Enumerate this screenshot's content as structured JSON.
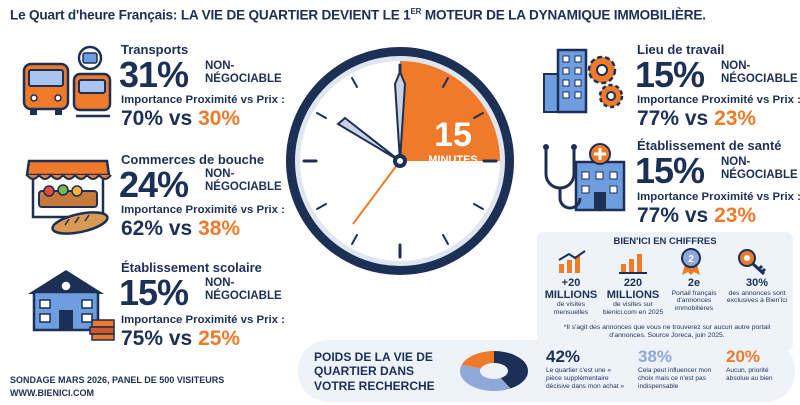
{
  "title": {
    "main": "Le Quart d'heure Français: LA VIE DE QUARTIER DEVIENT LE 1",
    "sup": "ER",
    "tail": " MOTEUR DE LA DYNAMIQUE IMMOBILIÈRE."
  },
  "clock": {
    "number": "15",
    "unit": "MINUTES"
  },
  "cards": {
    "transports": {
      "label": "Transports",
      "pct": "31%",
      "neg1": "NON-",
      "neg2": "NÉGOCIABLE",
      "imp": "Importance Proximité vs Prix :",
      "a": "70%",
      "vs": " vs ",
      "b": "30%"
    },
    "commerces": {
      "label": "Commerces de bouche",
      "pct": "24%",
      "neg1": "NON-",
      "neg2": "NÉGOCIABLE",
      "imp": "Importance Proximité vs Prix :",
      "a": "62%",
      "vs": " vs ",
      "b": "38%"
    },
    "scolaire": {
      "label": "Établissement scolaire",
      "pct": "15%",
      "neg1": "NON-",
      "neg2": "NÉGOCIABLE",
      "imp": "Importance Proximité vs Prix :",
      "a": "75%",
      "vs": " vs ",
      "b": "25%"
    },
    "travail": {
      "label": "Lieu de travail",
      "pct": "15%",
      "neg1": "NON-",
      "neg2": "NÉGOCIABLE",
      "imp": "Importance Proximité vs Prix :",
      "a": "77%",
      "vs": " vs ",
      "b": "23%"
    },
    "sante": {
      "label": "Établissement de santé",
      "pct": "15%",
      "neg1": "NON-",
      "neg2": "NÉGOCIABLE",
      "imp": "Importance Proximité vs Prix :",
      "a": "77%",
      "vs": " vs ",
      "b": "23%"
    }
  },
  "bienici": {
    "title": "BIEN'ICI EN CHIFFRES",
    "stats": [
      {
        "n1": "+20",
        "n2": "MILLIONS",
        "d": "de visites mensuelles"
      },
      {
        "n1": "220",
        "n2": "MILLIONS",
        "d": "de visites sur bienici.com en 2025"
      },
      {
        "n1": "2e",
        "n2": "",
        "d": "Portail français d'annonces immobilières"
      },
      {
        "n1": "30%",
        "n2": "",
        "d": "des annonces sont exclusives à Bien'ici"
      }
    ],
    "note": "*Il s'agit des annonces que vous ne trouverez sur aucun autre portail d'annonces. Source Joreca, juin 2025."
  },
  "poids": {
    "title": "POIDS DE LA VIE DE QUARTIER DANS VOTRE RECHERCHE",
    "items": [
      {
        "pct": "42%",
        "desc": "Le quartier c'est une « pièce supplémentaire décisive dans mon achat »",
        "color": "#1c2f55"
      },
      {
        "pct": "38%",
        "desc": "Cela peut influencer mon choix mais ce n'est pas indispensable",
        "color": "#8fa8d8"
      },
      {
        "pct": "20%",
        "desc": "Aucun, priorité absolue au bien",
        "color": "#ee7a2a"
      }
    ],
    "pie": [
      42,
      38,
      20
    ]
  },
  "footer": {
    "line1": "SONDAGE MARS 2026, PANEL DE 500 VISITEURS",
    "line2": "WWW.BIENICI.COM"
  },
  "colors": {
    "navy": "#1c2f55",
    "orange": "#ee7a2a",
    "blue": "#6f9ee0",
    "light": "#eef3fa"
  },
  "icons": [
    "bus-train-icon",
    "market-stall-icon",
    "school-icon",
    "office-gear-icon",
    "health-icon",
    "growth-chart-icon",
    "bar-chart-icon",
    "medal-icon",
    "key-icon",
    "clock-icon"
  ]
}
